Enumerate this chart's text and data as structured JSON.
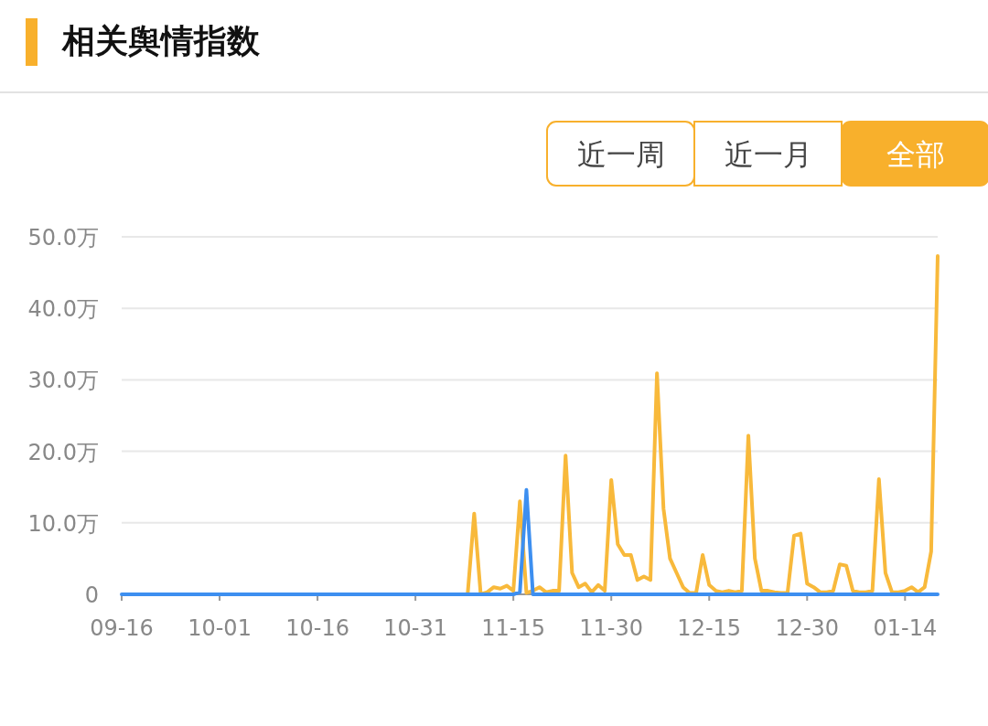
{
  "chart_data": {
    "type": "line",
    "title": "相关舆情指数",
    "annotations": [
      "近一周",
      "近一月",
      "全部"
    ],
    "categories": [
      "09-16",
      null,
      null,
      null,
      null,
      null,
      null,
      null,
      null,
      null,
      null,
      null,
      null,
      null,
      null,
      "10-01",
      null,
      null,
      null,
      null,
      null,
      null,
      null,
      null,
      null,
      null,
      null,
      null,
      null,
      null,
      "10-16",
      null,
      null,
      null,
      null,
      null,
      null,
      null,
      null,
      null,
      null,
      null,
      null,
      null,
      null,
      "10-31",
      null,
      null,
      null,
      null,
      null,
      null,
      null,
      null,
      null,
      null,
      null,
      null,
      null,
      null,
      "11-15",
      null,
      null,
      null,
      null,
      null,
      null,
      null,
      null,
      null,
      null,
      null,
      null,
      null,
      null,
      "11-30",
      null,
      null,
      null,
      null,
      null,
      null,
      null,
      null,
      null,
      null,
      null,
      null,
      null,
      null,
      "12-15",
      null,
      null,
      null,
      null,
      null,
      null,
      null,
      null,
      null,
      null,
      null,
      null,
      null,
      null,
      "12-30",
      null,
      null,
      null,
      null,
      null,
      null,
      null,
      null,
      null,
      null,
      null,
      null,
      null,
      null,
      "01-14",
      null,
      null,
      null,
      null,
      null
    ],
    "ylim": [
      0,
      50
    ],
    "yticks": [
      {
        "value": 0,
        "label": "0"
      },
      {
        "value": 10,
        "label": "10.0万"
      },
      {
        "value": 20,
        "label": "20.0万"
      },
      {
        "value": 30,
        "label": "30.0万"
      },
      {
        "value": 40,
        "label": "40.0万"
      },
      {
        "value": 50,
        "label": "50.0万"
      }
    ],
    "grid": "y",
    "line_style": "solid",
    "series": [
      {
        "color": "#f8b93b",
        "values": [
          null,
          null,
          null,
          null,
          null,
          null,
          null,
          null,
          null,
          null,
          null,
          null,
          null,
          null,
          null,
          null,
          null,
          null,
          null,
          null,
          null,
          null,
          null,
          null,
          null,
          null,
          null,
          null,
          null,
          null,
          null,
          null,
          null,
          null,
          null,
          null,
          null,
          null,
          null,
          null,
          null,
          null,
          null,
          null,
          null,
          null,
          null,
          null,
          null,
          null,
          null,
          null,
          null,
          0,
          11.3,
          0,
          0.3,
          1,
          0.8,
          1.2,
          0.5,
          13,
          0.2,
          0.5,
          1,
          0.3,
          0.5,
          0.5,
          19.4,
          3,
          1,
          1.5,
          0.3,
          1.3,
          0.5,
          16,
          7,
          5.5,
          5.5,
          2,
          2.5,
          2,
          30.9,
          12,
          5,
          3,
          1,
          0.2,
          0.2,
          5.5,
          1.3,
          0.5,
          0.3,
          0.5,
          0.3,
          0.5,
          22.2,
          5,
          0.5,
          0.5,
          0.3,
          0.2,
          0.2,
          8.2,
          8.5,
          1.5,
          1,
          0.3,
          0.3,
          0.5,
          4.2,
          4,
          0.5,
          0.3,
          0.3,
          0.5,
          16.1,
          3,
          0.3,
          0.3,
          0.5,
          1,
          0.3,
          1,
          6,
          47.3
        ]
      },
      {
        "color": "#3d8ff0",
        "values": [
          0,
          0,
          0,
          0,
          0,
          0,
          0,
          0,
          0,
          0,
          0,
          0,
          0,
          0,
          0,
          0,
          0,
          0,
          0,
          0,
          0,
          0,
          0,
          0,
          0,
          0,
          0,
          0,
          0,
          0,
          0,
          0,
          0,
          0,
          0,
          0,
          0,
          0,
          0,
          0,
          0,
          0,
          0,
          0,
          0,
          0,
          0,
          0,
          0,
          0,
          0,
          0,
          0,
          0,
          0,
          0,
          0,
          0,
          0,
          0,
          0,
          0.3,
          14.6,
          0,
          0,
          0,
          0,
          0,
          0,
          0,
          0,
          0,
          0,
          0,
          0,
          0,
          0,
          0,
          0,
          0,
          0,
          0,
          0,
          0,
          0,
          0,
          0,
          0,
          0,
          0,
          0,
          0,
          0,
          0,
          0,
          0,
          0,
          0,
          0,
          0,
          0,
          0,
          0,
          0,
          0,
          0,
          0,
          0,
          0,
          0,
          0,
          0,
          0,
          0,
          0,
          0,
          0,
          0,
          0,
          0,
          0,
          0,
          0,
          0,
          0,
          0
        ]
      }
    ]
  }
}
